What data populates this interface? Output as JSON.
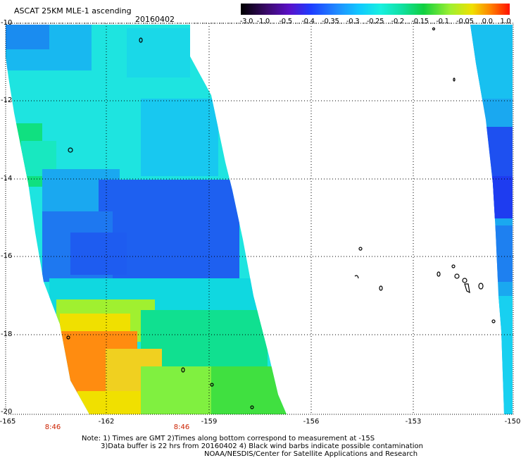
{
  "header": {
    "title": "ASCAT 25KM MLE-1 ascending",
    "date": "20160402"
  },
  "colorbar": {
    "labels": [
      "-3.0",
      "-1.0",
      "-0.5",
      "-0.4",
      "-0.35",
      "-0.3",
      "-0.25",
      "-0.2",
      "-0.15",
      "-0.1",
      "-0.05",
      "0.0",
      "1.0"
    ],
    "colors": [
      "#000000",
      "#3c0a6e",
      "#5a10c8",
      "#1e3cff",
      "#1f8cff",
      "#10c8ff",
      "#18f0e0",
      "#10e0a0",
      "#10d040",
      "#a0f030",
      "#f0e000",
      "#ff8000",
      "#ff1000"
    ]
  },
  "axes": {
    "lat_ticks": [
      "-10",
      "-12",
      "-14",
      "-16",
      "-18",
      "-20"
    ],
    "lon_ticks": [
      "-165",
      "-162",
      "-159",
      "-156",
      "-153",
      "-150"
    ],
    "lat_range": [
      -20,
      -10
    ],
    "lon_range": [
      -165,
      -150
    ]
  },
  "time_labels": [
    "8:46",
    "8:46"
  ],
  "notes": {
    "line1": "Note: 1) Times are GMT 2)Times along bottom correspond to measurement at -15S",
    "line2": "3)Data buffer is 22 hrs from 20160402 4) Black wind barbs indicate possible contamination",
    "line3": "NOAA/NESDIS/Center for Satellite Applications and Research"
  }
}
